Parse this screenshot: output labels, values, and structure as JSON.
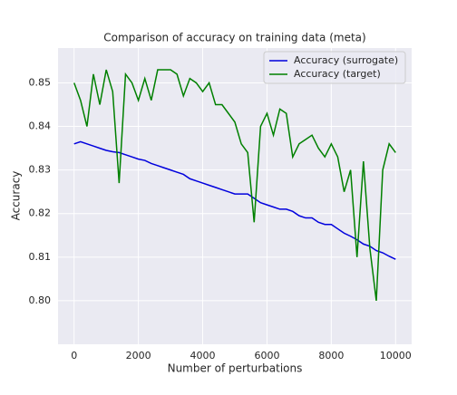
{
  "chart_data": {
    "type": "line",
    "title": "Comparison of accuracy on training data (meta)",
    "x_label": "Number of perturbations",
    "y_label": "Accuracy",
    "x": [
      0,
      200,
      400,
      600,
      800,
      1000,
      1200,
      1400,
      1600,
      1800,
      2000,
      2200,
      2400,
      2600,
      2800,
      3000,
      3200,
      3400,
      3600,
      3800,
      4000,
      4200,
      4400,
      4600,
      4800,
      5000,
      5200,
      5400,
      5600,
      5800,
      6000,
      6200,
      6400,
      6600,
      6800,
      7000,
      7200,
      7400,
      7600,
      7800,
      8000,
      8200,
      8400,
      8600,
      8800,
      9000,
      9200,
      9400,
      9600,
      9800,
      10000
    ],
    "series": [
      {
        "name": "Accuracy (surrogate)",
        "color": "#0000dd",
        "values": [
          0.836,
          0.8365,
          0.836,
          0.8355,
          0.835,
          0.8345,
          0.8342,
          0.834,
          0.8335,
          0.833,
          0.8325,
          0.8322,
          0.8315,
          0.831,
          0.8305,
          0.83,
          0.8295,
          0.829,
          0.828,
          0.8275,
          0.827,
          0.8265,
          0.826,
          0.8255,
          0.825,
          0.8245,
          0.8245,
          0.8245,
          0.8235,
          0.8225,
          0.822,
          0.8215,
          0.821,
          0.821,
          0.8205,
          0.8195,
          0.819,
          0.819,
          0.818,
          0.8175,
          0.8175,
          0.8165,
          0.8155,
          0.8148,
          0.814,
          0.813,
          0.8125,
          0.8115,
          0.811,
          0.8102,
          0.8095
        ]
      },
      {
        "name": "Accuracy (target)",
        "color": "#008000",
        "values": [
          0.85,
          0.846,
          0.84,
          0.852,
          0.845,
          0.853,
          0.848,
          0.827,
          0.852,
          0.85,
          0.846,
          0.851,
          0.846,
          0.853,
          0.853,
          0.853,
          0.852,
          0.847,
          0.851,
          0.85,
          0.848,
          0.85,
          0.845,
          0.845,
          0.843,
          0.841,
          0.836,
          0.834,
          0.818,
          0.84,
          0.843,
          0.838,
          0.844,
          0.843,
          0.833,
          0.836,
          0.837,
          0.838,
          0.835,
          0.833,
          0.836,
          0.833,
          0.825,
          0.83,
          0.81,
          0.832,
          0.812,
          0.8,
          0.83,
          0.836,
          0.834
        ]
      }
    ],
    "xlim": [
      -500,
      10500
    ],
    "ylim": [
      0.79,
      0.858
    ],
    "xticks": [
      0,
      2000,
      4000,
      6000,
      8000,
      10000
    ],
    "yticks": [
      {
        "value": 0.8,
        "label": "0.80"
      },
      0.81,
      0.82,
      0.83,
      0.84,
      0.85
    ],
    "grid": true,
    "legend": "upper right"
  }
}
